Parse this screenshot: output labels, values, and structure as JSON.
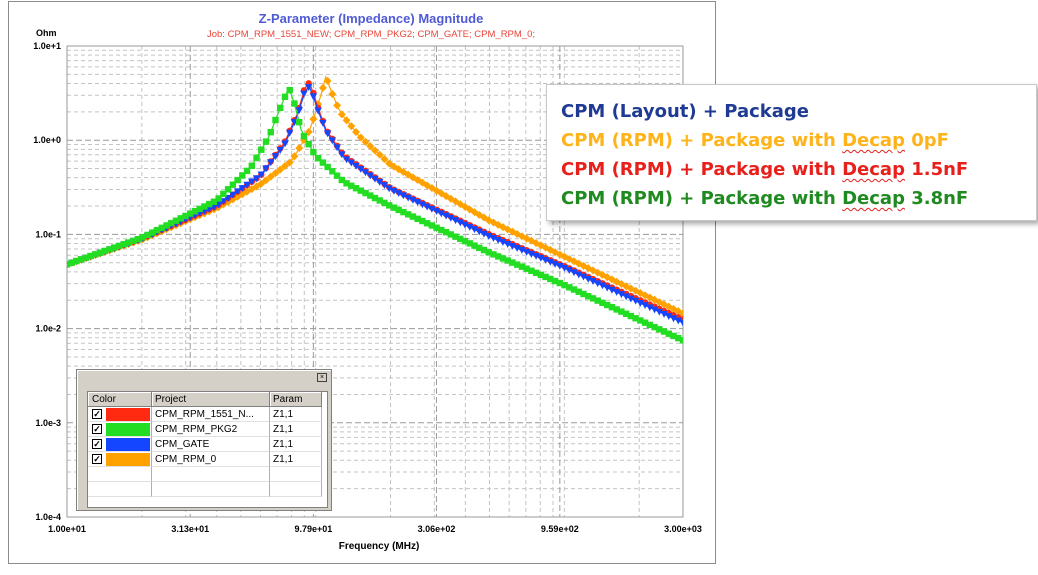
{
  "chart_data": {
    "type": "line",
    "title": "Z-Parameter (Impedance) Magnitude",
    "subtitle": "Job:  CPM_RPM_1551_NEW; CPM_RPM_PKG2; CPM_GATE; CPM_RPM_0;",
    "ylabel": "Ohm",
    "xlabel": "Frequency (MHz)",
    "x_scale": "log",
    "y_scale": "log",
    "xlim": [
      10,
      3000
    ],
    "ylim": [
      0.0001,
      10
    ],
    "grid": true,
    "x_ticks": [
      {
        "value": 10,
        "label": "1.00e+01"
      },
      {
        "value": 31.3,
        "label": "3.13e+01"
      },
      {
        "value": 97.9,
        "label": "9.79e+01"
      },
      {
        "value": 306,
        "label": "3.06e+02"
      },
      {
        "value": 959,
        "label": "9.59e+02"
      },
      {
        "value": 3000,
        "label": "3.00e+03"
      }
    ],
    "y_ticks": [
      {
        "value": 10,
        "label": "1.0e+1"
      },
      {
        "value": 1,
        "label": "1.0e+0"
      },
      {
        "value": 0.1,
        "label": "1.0e-1"
      },
      {
        "value": 0.01,
        "label": "1.0e-2"
      },
      {
        "value": 0.001,
        "label": "1.0e-3"
      },
      {
        "value": 0.0001,
        "label": "1.0e-4"
      }
    ],
    "series": [
      {
        "name": "CPM_RPM_1551_N...",
        "param": "Z1,1",
        "color": "#ff2a10",
        "marker": "circle",
        "x": [
          10,
          20,
          40,
          60,
          75,
          85,
          90,
          95,
          100,
          110,
          130,
          200,
          500,
          1000,
          3000
        ],
        "y": [
          0.048,
          0.09,
          0.2,
          0.42,
          0.95,
          2.0,
          3.5,
          4.2,
          2.6,
          1.3,
          0.68,
          0.31,
          0.1,
          0.046,
          0.0125
        ]
      },
      {
        "name": "CPM_RPM_PKG2",
        "param": "Z1,1",
        "color": "#22dd22",
        "marker": "square",
        "x": [
          10,
          20,
          40,
          55,
          65,
          72,
          78,
          82,
          88,
          100,
          130,
          200,
          500,
          1000,
          3000
        ],
        "y": [
          0.048,
          0.092,
          0.23,
          0.52,
          1.1,
          2.2,
          3.6,
          2.5,
          1.2,
          0.68,
          0.36,
          0.2,
          0.064,
          0.029,
          0.0075
        ]
      },
      {
        "name": "CPM_GATE",
        "param": "Z1,1",
        "color": "#1446ff",
        "marker": "triangle-down",
        "x": [
          10,
          20,
          40,
          60,
          75,
          85,
          90,
          95,
          100,
          110,
          130,
          200,
          500,
          1000,
          3000
        ],
        "y": [
          0.048,
          0.09,
          0.2,
          0.42,
          0.9,
          1.9,
          3.2,
          3.8,
          2.4,
          1.25,
          0.65,
          0.3,
          0.095,
          0.044,
          0.0115
        ]
      },
      {
        "name": "CPM_RPM_0",
        "param": "Z1,1",
        "color": "#ffa200",
        "marker": "diamond",
        "x": [
          10,
          20,
          40,
          60,
          80,
          95,
          105,
          110,
          115,
          125,
          150,
          200,
          500,
          1000,
          3000
        ],
        "y": [
          0.048,
          0.088,
          0.19,
          0.34,
          0.6,
          1.3,
          3.0,
          4.8,
          3.4,
          2.0,
          1.1,
          0.55,
          0.14,
          0.058,
          0.0145
        ]
      }
    ]
  },
  "annotation_legend": {
    "items": [
      {
        "parts": [
          {
            "text": "CPM (Layout) + Package",
            "decap": false
          }
        ],
        "color": "#1f3a93"
      },
      {
        "parts": [
          {
            "text": "CPM (RPM) + Package with ",
            "decap": false
          },
          {
            "text": "Decap",
            "decap": true
          },
          {
            "text": " 0pF",
            "decap": false
          }
        ],
        "color": "#ffb31a"
      },
      {
        "parts": [
          {
            "text": "CPM (RPM) + Package with ",
            "decap": false
          },
          {
            "text": "Decap",
            "decap": true
          },
          {
            "text": " 1.5nF",
            "decap": false
          }
        ],
        "color": "#e8201c"
      },
      {
        "parts": [
          {
            "text": "CPM (RPM) + Package with ",
            "decap": false
          },
          {
            "text": "Decap",
            "decap": true
          },
          {
            "text": " 3.8nF",
            "decap": false
          }
        ],
        "color": "#1f8a1f"
      }
    ]
  },
  "legend_table": {
    "close_glyph": "×",
    "check_glyph": "✓",
    "headers": {
      "color": "Color",
      "project": "Project",
      "param": "Param"
    }
  }
}
